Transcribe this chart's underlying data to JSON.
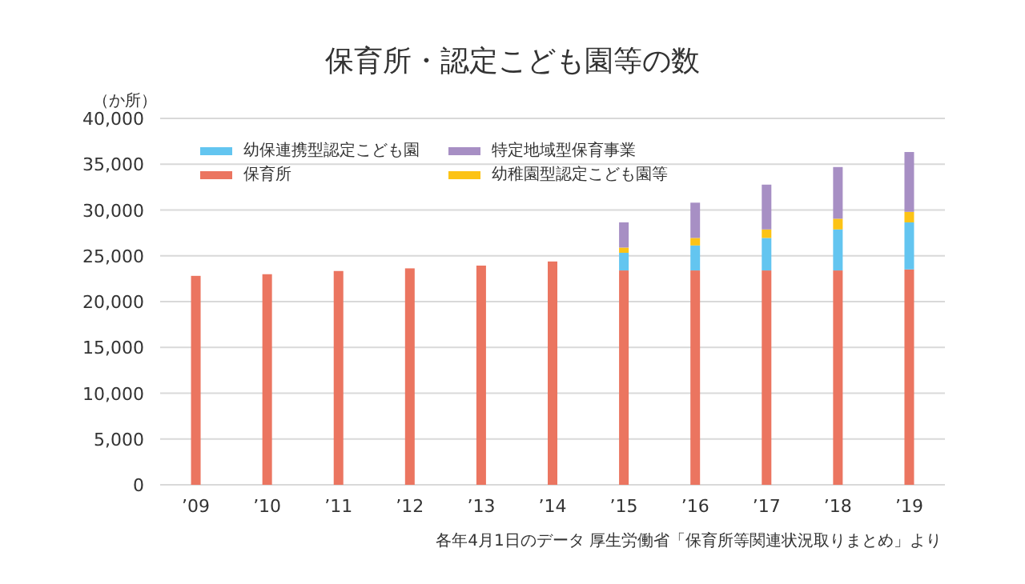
{
  "chart_data": {
    "type": "bar",
    "title": "保育所・認定こども園等の数",
    "ylabel": "（か所）",
    "stacked": true,
    "grid": "y",
    "legend": "top left",
    "categories": [
      "’09",
      "’10",
      "’11",
      "’12",
      "’13",
      "’14",
      "’15",
      "’16",
      "’17",
      "’18",
      "’19"
    ],
    "ylim": [
      0,
      40000
    ],
    "yticks": [
      0,
      {
        "value": 5000,
        "label": "5,000"
      },
      {
        "value": 10000,
        "label": "10,000"
      },
      {
        "value": 15000,
        "label": "15,000"
      },
      {
        "value": 20000,
        "label": "20,000"
      },
      {
        "value": 25000,
        "label": "25,000"
      },
      {
        "value": 30000,
        "label": "30,000"
      },
      {
        "value": 35000,
        "label": "35,000"
      },
      {
        "value": 40000,
        "label": "40,000"
      }
    ],
    "series": [
      {
        "name": "保育所",
        "color": "#eb7560",
        "values": [
          22810,
          22990,
          23340,
          23630,
          23930,
          24380,
          23400,
          23400,
          23400,
          23400,
          23510
        ]
      },
      {
        "name": "幼保連携型認定こども園",
        "color": "#63c5f0",
        "values": [
          null,
          null,
          null,
          null,
          null,
          null,
          1930,
          2730,
          3550,
          4480,
          5140
        ]
      },
      {
        "name": "幼稚園型認定こども園等",
        "color": "#fcc315",
        "values": [
          null,
          null,
          null,
          null,
          null,
          null,
          570,
          820,
          930,
          1170,
          1150
        ]
      },
      {
        "name": "特定地域型保育事業",
        "color": "#a78fc4",
        "values": [
          null,
          null,
          null,
          null,
          null,
          null,
          2750,
          3850,
          4890,
          5640,
          6530
        ]
      }
    ],
    "annotations": [
      "各年4月1日のデータ 厚生労働省「保育所等関連状況取りまとめ」より"
    ]
  }
}
